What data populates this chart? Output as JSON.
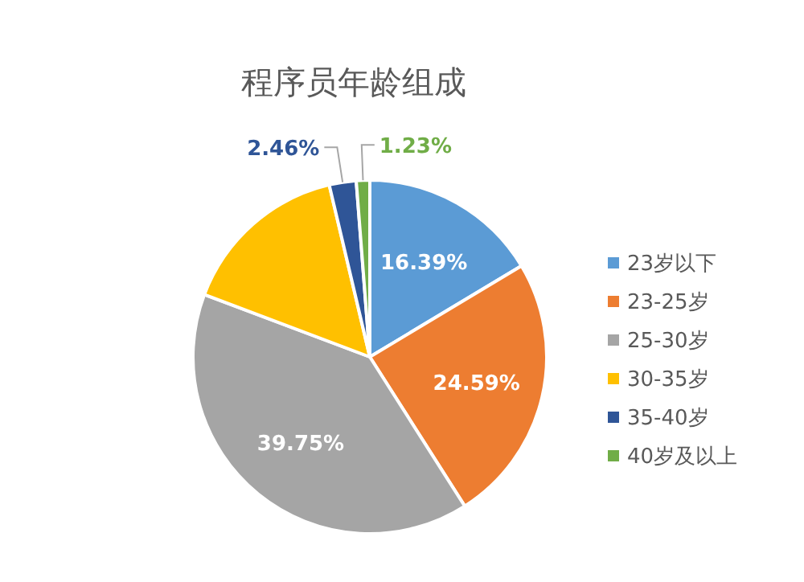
{
  "chart_data": {
    "type": "pie",
    "title": "程序员年龄组成",
    "categories": [
      "23岁以下",
      "23-25岁",
      "25-30岁",
      "30-35岁",
      "35-40岁",
      "40岁及以上"
    ],
    "values": [
      16.39,
      24.59,
      39.75,
      15.58,
      2.46,
      1.23
    ],
    "colors": [
      "#5b9bd5",
      "#ed7d31",
      "#a5a5a5",
      "#ffc000",
      "#2f5597",
      "#70ad47"
    ],
    "value_labels": [
      "16.39%",
      "24.59%",
      "39.75%",
      null,
      "2.46%",
      "1.23%"
    ],
    "legend": "right"
  }
}
